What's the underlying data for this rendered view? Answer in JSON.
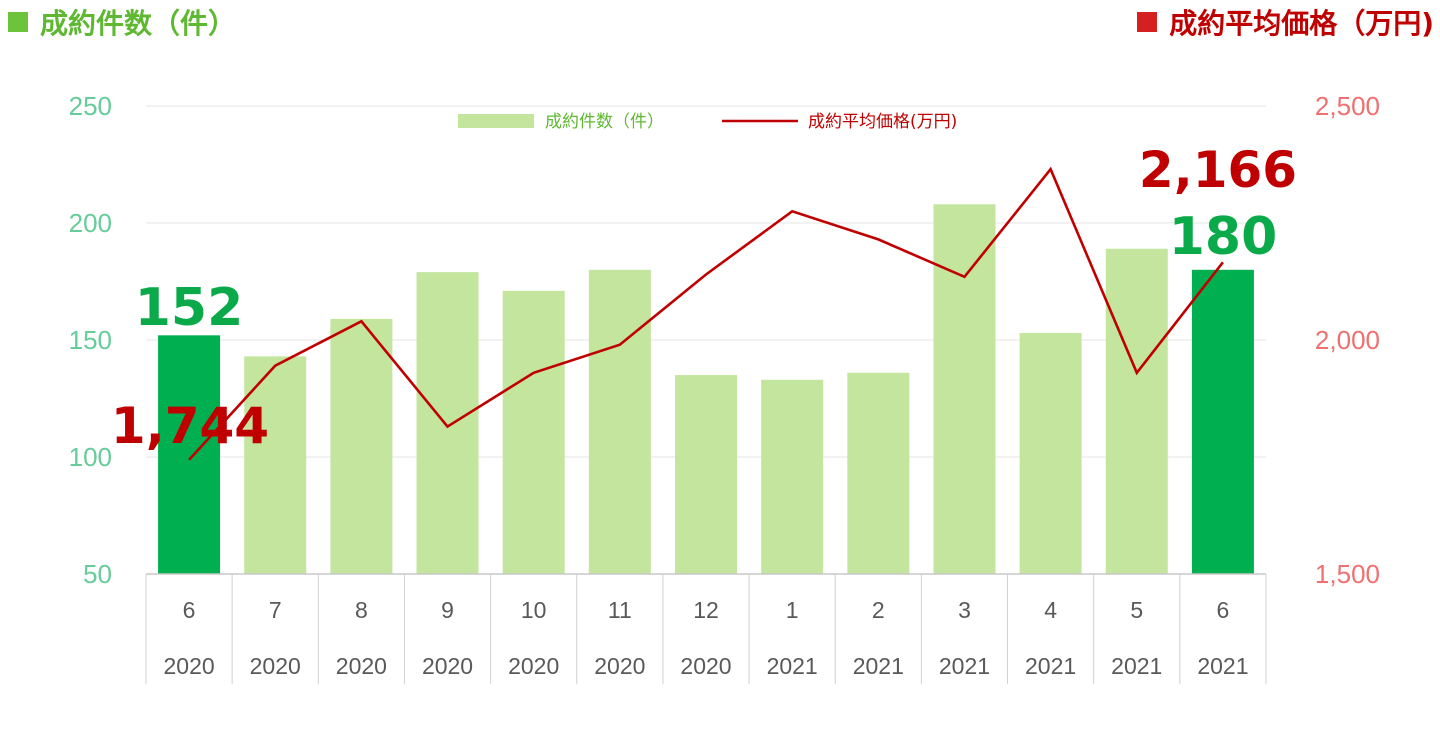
{
  "header": {
    "left_title": "成約件数（件）",
    "right_title": "成約平均価格（万円)"
  },
  "legend": {
    "bar_label": "成約件数（件）",
    "line_label": "成約平均価格(万円)"
  },
  "colors": {
    "bar_normal": "#c3e59e",
    "bar_highlight": "#00b050",
    "line": "#c00000",
    "left_axis_text": "#66cc99",
    "right_axis_text": "#f07070",
    "grid": "#e6e6e6"
  },
  "chart_data": {
    "type": "bar",
    "categories": [
      "6",
      "7",
      "8",
      "9",
      "10",
      "11",
      "12",
      "1",
      "2",
      "3",
      "4",
      "5",
      "6"
    ],
    "years": [
      "2020",
      "2020",
      "2020",
      "2020",
      "2020",
      "2020",
      "2020",
      "2021",
      "2021",
      "2021",
      "2021",
      "2021",
      "2021"
    ],
    "series": [
      {
        "name": "成約件数（件）",
        "type": "bar",
        "axis": "left",
        "values": [
          152,
          143,
          159,
          179,
          171,
          180,
          135,
          133,
          136,
          208,
          153,
          189,
          180
        ],
        "highlight": [
          true,
          false,
          false,
          false,
          false,
          false,
          false,
          false,
          false,
          false,
          false,
          false,
          true
        ]
      },
      {
        "name": "成約平均価格(万円)",
        "type": "line",
        "axis": "right",
        "values": [
          1744,
          1945,
          2040,
          1815,
          1930,
          1990,
          2140,
          2275,
          2215,
          2135,
          2365,
          1930,
          2166
        ]
      }
    ],
    "left_axis": {
      "ylim": [
        50,
        250
      ],
      "ticks": [
        "50",
        "100",
        "150",
        "200",
        "250"
      ],
      "tick_values": [
        50,
        100,
        150,
        200,
        250
      ]
    },
    "right_axis": {
      "ylim": [
        1500,
        2500
      ],
      "ticks": [
        "1,500",
        "2,000",
        "2,500"
      ],
      "tick_values": [
        1500,
        2000,
        2500
      ]
    },
    "labels": {
      "first_count": "152",
      "last_count": "180",
      "first_price": "1,744",
      "last_price": "2,166"
    },
    "grid": true,
    "legend_position": "top"
  }
}
